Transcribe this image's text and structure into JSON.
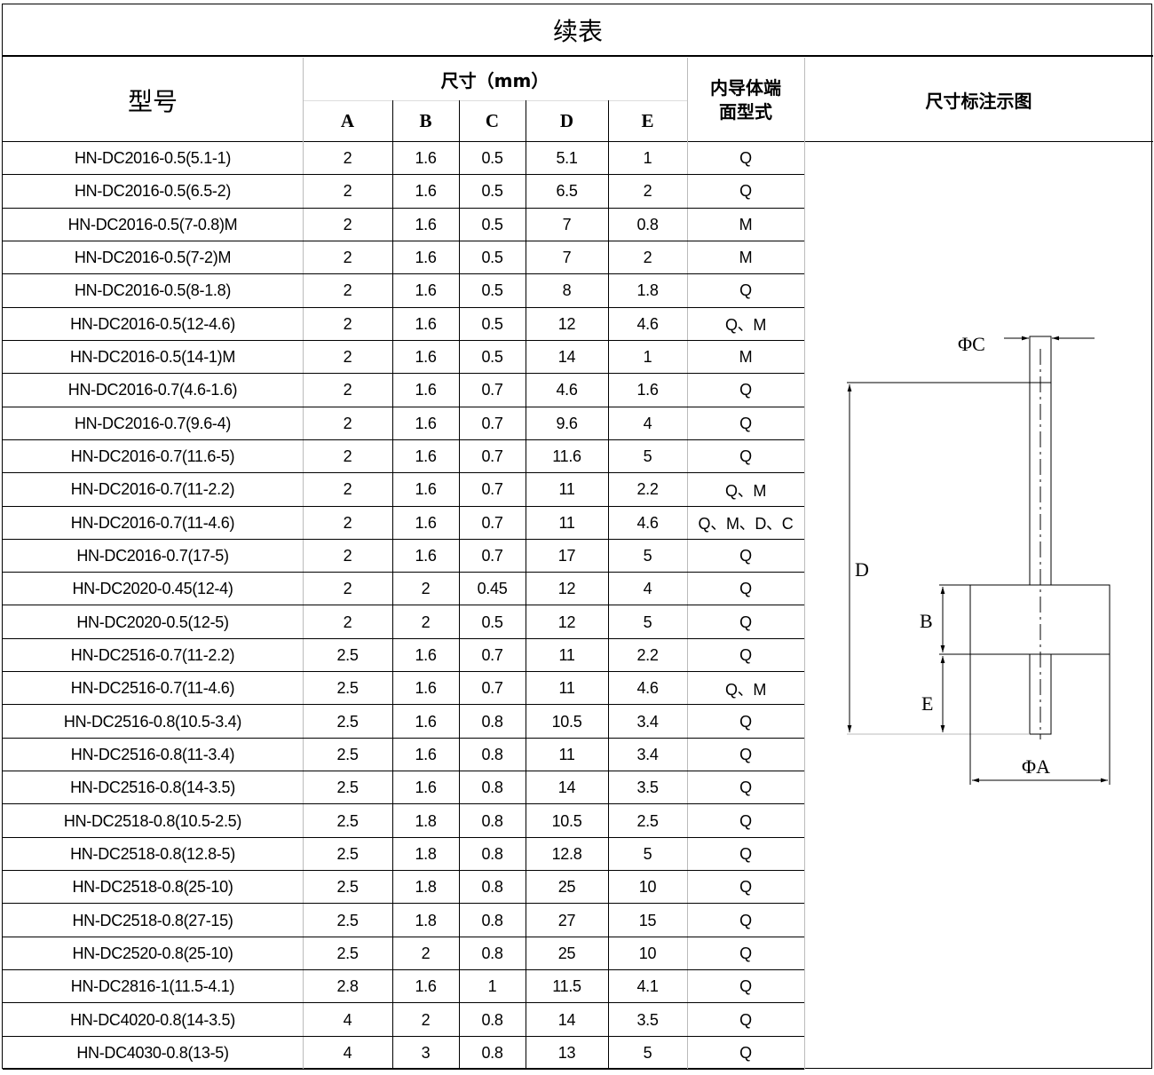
{
  "title": "续表",
  "headers": {
    "model": "型号",
    "dimensions": "尺寸（mm）",
    "cols": [
      "A",
      "B",
      "C",
      "D",
      "E"
    ],
    "type_line1": "内导体端",
    "type_line2": "面型式",
    "diagram": "尺寸标注示图"
  },
  "rows": [
    [
      "HN-DC2016-0.5(5.1-1)",
      "2",
      "1.6",
      "0.5",
      "5.1",
      "1",
      "Q"
    ],
    [
      "HN-DC2016-0.5(6.5-2)",
      "2",
      "1.6",
      "0.5",
      "6.5",
      "2",
      "Q"
    ],
    [
      "HN-DC2016-0.5(7-0.8)M",
      "2",
      "1.6",
      "0.5",
      "7",
      "0.8",
      "M"
    ],
    [
      "HN-DC2016-0.5(7-2)M",
      "2",
      "1.6",
      "0.5",
      "7",
      "2",
      "M"
    ],
    [
      "HN-DC2016-0.5(8-1.8)",
      "2",
      "1.6",
      "0.5",
      "8",
      "1.8",
      "Q"
    ],
    [
      "HN-DC2016-0.5(12-4.6)",
      "2",
      "1.6",
      "0.5",
      "12",
      "4.6",
      "Q、M"
    ],
    [
      "HN-DC2016-0.5(14-1)M",
      "2",
      "1.6",
      "0.5",
      "14",
      "1",
      "M"
    ],
    [
      "HN-DC2016-0.7(4.6-1.6)",
      "2",
      "1.6",
      "0.7",
      "4.6",
      "1.6",
      "Q"
    ],
    [
      "HN-DC2016-0.7(9.6-4)",
      "2",
      "1.6",
      "0.7",
      "9.6",
      "4",
      "Q"
    ],
    [
      "HN-DC2016-0.7(11.6-5)",
      "2",
      "1.6",
      "0.7",
      "11.6",
      "5",
      "Q"
    ],
    [
      "HN-DC2016-0.7(11-2.2)",
      "2",
      "1.6",
      "0.7",
      "11",
      "2.2",
      "Q、M"
    ],
    [
      "HN-DC2016-0.7(11-4.6)",
      "2",
      "1.6",
      "0.7",
      "11",
      "4.6",
      "Q、M、D、C"
    ],
    [
      "HN-DC2016-0.7(17-5)",
      "2",
      "1.6",
      "0.7",
      "17",
      "5",
      "Q"
    ],
    [
      "HN-DC2020-0.45(12-4)",
      "2",
      "2",
      "0.45",
      "12",
      "4",
      "Q"
    ],
    [
      "HN-DC2020-0.5(12-5)",
      "2",
      "2",
      "0.5",
      "12",
      "5",
      "Q"
    ],
    [
      "HN-DC2516-0.7(11-2.2)",
      "2.5",
      "1.6",
      "0.7",
      "11",
      "2.2",
      "Q"
    ],
    [
      "HN-DC2516-0.7(11-4.6)",
      "2.5",
      "1.6",
      "0.7",
      "11",
      "4.6",
      "Q、M"
    ],
    [
      "HN-DC2516-0.8(10.5-3.4)",
      "2.5",
      "1.6",
      "0.8",
      "10.5",
      "3.4",
      "Q"
    ],
    [
      "HN-DC2516-0.8(11-3.4)",
      "2.5",
      "1.6",
      "0.8",
      "11",
      "3.4",
      "Q"
    ],
    [
      "HN-DC2516-0.8(14-3.5)",
      "2.5",
      "1.6",
      "0.8",
      "14",
      "3.5",
      "Q"
    ],
    [
      "HN-DC2518-0.8(10.5-2.5)",
      "2.5",
      "1.8",
      "0.8",
      "10.5",
      "2.5",
      "Q"
    ],
    [
      "HN-DC2518-0.8(12.8-5)",
      "2.5",
      "1.8",
      "0.8",
      "12.8",
      "5",
      "Q"
    ],
    [
      "HN-DC2518-0.8(25-10)",
      "2.5",
      "1.8",
      "0.8",
      "25",
      "10",
      "Q"
    ],
    [
      "HN-DC2518-0.8(27-15)",
      "2.5",
      "1.8",
      "0.8",
      "27",
      "15",
      "Q"
    ],
    [
      "HN-DC2520-0.8(25-10)",
      "2.5",
      "2",
      "0.8",
      "25",
      "10",
      "Q"
    ],
    [
      "HN-DC2816-1(11.5-4.1)",
      "2.8",
      "1.6",
      "1",
      "11.5",
      "4.1",
      "Q"
    ],
    [
      "HN-DC4020-0.8(14-3.5)",
      "4",
      "2",
      "0.8",
      "14",
      "3.5",
      "Q"
    ],
    [
      "HN-DC4030-0.8(13-5)",
      "4",
      "3",
      "0.8",
      "13",
      "5",
      "Q"
    ]
  ],
  "diagram_labels": {
    "phiC": "ΦC",
    "D": "D",
    "B": "B",
    "E": "E",
    "phiA": "ΦA"
  }
}
